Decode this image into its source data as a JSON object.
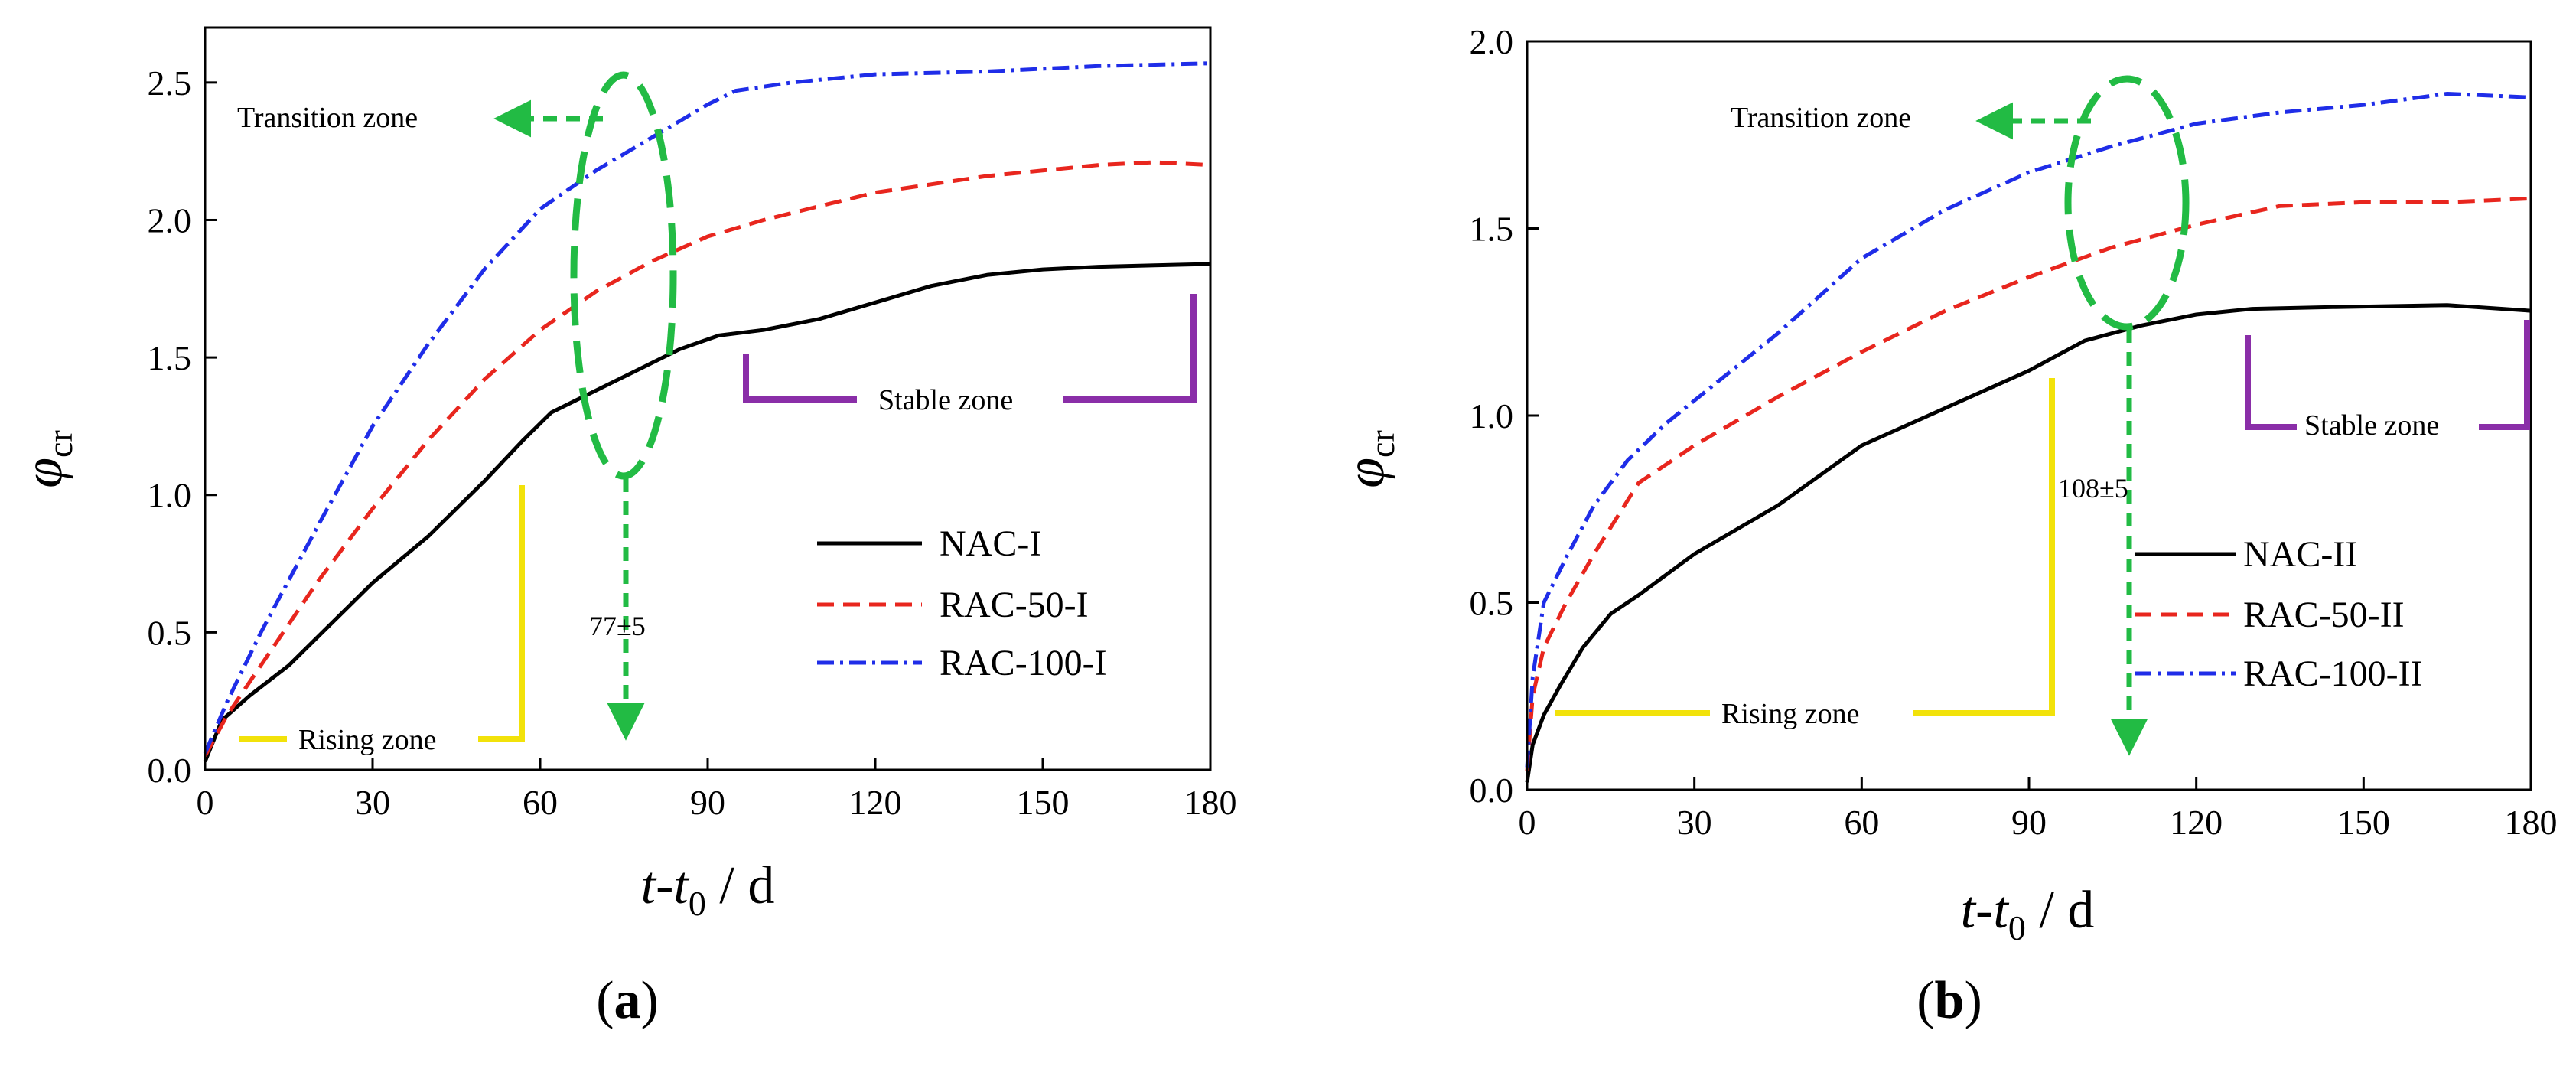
{
  "chart_data": [
    {
      "id": "a",
      "type": "line",
      "panel_label": "a",
      "xlabel": "t-t0 / d",
      "ylabel": "φcr",
      "xlim": [
        0,
        180
      ],
      "ylim": [
        0,
        2.7
      ],
      "xticks": [
        0,
        30,
        60,
        90,
        120,
        150,
        180
      ],
      "yticks": [
        0.0,
        0.5,
        1.0,
        1.5,
        2.0,
        2.5
      ],
      "ytick_labels": [
        "0.0",
        "0.5",
        "1.0",
        "1.5",
        "2.0",
        "2.5"
      ],
      "legend_position": "center-right",
      "series": [
        {
          "name": "NAC-I",
          "color": "#000000",
          "style": "solid",
          "points": [
            [
              0,
              0.03
            ],
            [
              3,
              0.18
            ],
            [
              8,
              0.27
            ],
            [
              15,
              0.38
            ],
            [
              22,
              0.52
            ],
            [
              30,
              0.68
            ],
            [
              40,
              0.85
            ],
            [
              50,
              1.05
            ],
            [
              57,
              1.2
            ],
            [
              62,
              1.3
            ],
            [
              70,
              1.38
            ],
            [
              78,
              1.46
            ],
            [
              85,
              1.53
            ],
            [
              92,
              1.58
            ],
            [
              100,
              1.6
            ],
            [
              110,
              1.64
            ],
            [
              120,
              1.7
            ],
            [
              130,
              1.76
            ],
            [
              140,
              1.8
            ],
            [
              150,
              1.82
            ],
            [
              160,
              1.83
            ],
            [
              170,
              1.835
            ],
            [
              180,
              1.84
            ]
          ]
        },
        {
          "name": "RAC-50-I",
          "color": "#e8261e",
          "style": "dash",
          "points": [
            [
              0,
              0.05
            ],
            [
              4,
              0.2
            ],
            [
              10,
              0.38
            ],
            [
              20,
              0.68
            ],
            [
              30,
              0.95
            ],
            [
              40,
              1.2
            ],
            [
              50,
              1.42
            ],
            [
              60,
              1.6
            ],
            [
              70,
              1.74
            ],
            [
              80,
              1.85
            ],
            [
              90,
              1.94
            ],
            [
              100,
              2.0
            ],
            [
              110,
              2.05
            ],
            [
              120,
              2.1
            ],
            [
              130,
              2.13
            ],
            [
              140,
              2.16
            ],
            [
              150,
              2.18
            ],
            [
              160,
              2.2
            ],
            [
              170,
              2.21
            ],
            [
              180,
              2.2
            ]
          ]
        },
        {
          "name": "RAC-100-I",
          "color": "#1f2de8",
          "style": "dashdot",
          "points": [
            [
              0,
              0.06
            ],
            [
              4,
              0.25
            ],
            [
              10,
              0.5
            ],
            [
              20,
              0.88
            ],
            [
              30,
              1.25
            ],
            [
              40,
              1.55
            ],
            [
              50,
              1.82
            ],
            [
              60,
              2.04
            ],
            [
              70,
              2.18
            ],
            [
              80,
              2.3
            ],
            [
              90,
              2.42
            ],
            [
              95,
              2.47
            ],
            [
              105,
              2.5
            ],
            [
              120,
              2.53
            ],
            [
              140,
              2.54
            ],
            [
              160,
              2.56
            ],
            [
              180,
              2.57
            ]
          ]
        }
      ],
      "annotations": [
        {
          "text": "Transition zone"
        },
        {
          "text": "Stable zone"
        },
        {
          "text": "Rising zone"
        },
        {
          "text": "77±5"
        }
      ]
    },
    {
      "id": "b",
      "type": "line",
      "panel_label": "b",
      "xlabel": "t-t0 / d",
      "ylabel": "φcr",
      "xlim": [
        0,
        180
      ],
      "ylim": [
        0,
        2.0
      ],
      "xticks": [
        0,
        30,
        60,
        90,
        120,
        150,
        180
      ],
      "yticks": [
        0.0,
        0.5,
        1.0,
        1.5,
        2.0
      ],
      "ytick_labels": [
        "0.0",
        "0.5",
        "1.0",
        "1.5",
        "2.0"
      ],
      "legend_position": "center-right",
      "series": [
        {
          "name": "NAC-II",
          "color": "#000000",
          "style": "solid",
          "points": [
            [
              0,
              0.02
            ],
            [
              1,
              0.12
            ],
            [
              3,
              0.2
            ],
            [
              6,
              0.28
            ],
            [
              10,
              0.38
            ],
            [
              15,
              0.47
            ],
            [
              20,
              0.52
            ],
            [
              30,
              0.63
            ],
            [
              45,
              0.76
            ],
            [
              60,
              0.92
            ],
            [
              75,
              1.02
            ],
            [
              90,
              1.12
            ],
            [
              100,
              1.2
            ],
            [
              110,
              1.24
            ],
            [
              120,
              1.27
            ],
            [
              130,
              1.285
            ],
            [
              145,
              1.29
            ],
            [
              165,
              1.295
            ],
            [
              180,
              1.28
            ]
          ]
        },
        {
          "name": "RAC-50-II",
          "color": "#e8261e",
          "style": "dash",
          "points": [
            [
              0,
              0.05
            ],
            [
              1,
              0.25
            ],
            [
              3,
              0.38
            ],
            [
              7,
              0.5
            ],
            [
              12,
              0.63
            ],
            [
              20,
              0.82
            ],
            [
              30,
              0.92
            ],
            [
              45,
              1.05
            ],
            [
              60,
              1.17
            ],
            [
              75,
              1.28
            ],
            [
              90,
              1.37
            ],
            [
              105,
              1.45
            ],
            [
              120,
              1.51
            ],
            [
              135,
              1.56
            ],
            [
              150,
              1.57
            ],
            [
              165,
              1.57
            ],
            [
              180,
              1.58
            ]
          ]
        },
        {
          "name": "RAC-100-II",
          "color": "#1f2de8",
          "style": "dashdot",
          "points": [
            [
              0,
              0.06
            ],
            [
              1,
              0.3
            ],
            [
              3,
              0.5
            ],
            [
              7,
              0.62
            ],
            [
              12,
              0.76
            ],
            [
              18,
              0.88
            ],
            [
              25,
              0.98
            ],
            [
              35,
              1.1
            ],
            [
              45,
              1.22
            ],
            [
              60,
              1.42
            ],
            [
              75,
              1.55
            ],
            [
              90,
              1.65
            ],
            [
              105,
              1.72
            ],
            [
              120,
              1.78
            ],
            [
              135,
              1.81
            ],
            [
              150,
              1.83
            ],
            [
              165,
              1.86
            ],
            [
              180,
              1.85
            ]
          ]
        }
      ],
      "annotations": [
        {
          "text": "Transition zone"
        },
        {
          "text": "Stable zone"
        },
        {
          "text": "Rising zone"
        },
        {
          "text": "108±5"
        }
      ]
    }
  ]
}
